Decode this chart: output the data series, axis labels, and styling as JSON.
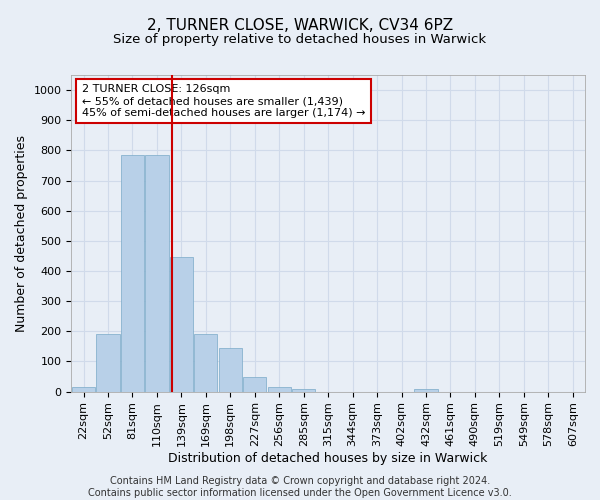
{
  "title1": "2, TURNER CLOSE, WARWICK, CV34 6PZ",
  "title2": "Size of property relative to detached houses in Warwick",
  "xlabel": "Distribution of detached houses by size in Warwick",
  "ylabel": "Number of detached properties",
  "bin_labels": [
    "22sqm",
    "52sqm",
    "81sqm",
    "110sqm",
    "139sqm",
    "169sqm",
    "198sqm",
    "227sqm",
    "256sqm",
    "285sqm",
    "315sqm",
    "344sqm",
    "373sqm",
    "402sqm",
    "432sqm",
    "461sqm",
    "490sqm",
    "519sqm",
    "549sqm",
    "578sqm",
    "607sqm"
  ],
  "bar_values": [
    15,
    192,
    785,
    785,
    445,
    192,
    145,
    48,
    15,
    10,
    0,
    0,
    0,
    0,
    10,
    0,
    0,
    0,
    0,
    0,
    0
  ],
  "bar_color": "#b8d0e8",
  "bar_edge_color": "#7aaac8",
  "grid_color": "#d0daea",
  "background_color": "#e8eef6",
  "vline_x": 3.63,
  "vline_color": "#cc0000",
  "annotation_text": "2 TURNER CLOSE: 126sqm\n← 55% of detached houses are smaller (1,439)\n45% of semi-detached houses are larger (1,174) →",
  "annotation_box_color": "#ffffff",
  "annotation_box_edge": "#cc0000",
  "ylim": [
    0,
    1050
  ],
  "yticks": [
    0,
    100,
    200,
    300,
    400,
    500,
    600,
    700,
    800,
    900,
    1000
  ],
  "footer": "Contains HM Land Registry data © Crown copyright and database right 2024.\nContains public sector information licensed under the Open Government Licence v3.0.",
  "title1_fontsize": 11,
  "title2_fontsize": 9.5,
  "xlabel_fontsize": 9,
  "ylabel_fontsize": 9,
  "annotation_fontsize": 8,
  "footer_fontsize": 7,
  "tick_fontsize": 8
}
